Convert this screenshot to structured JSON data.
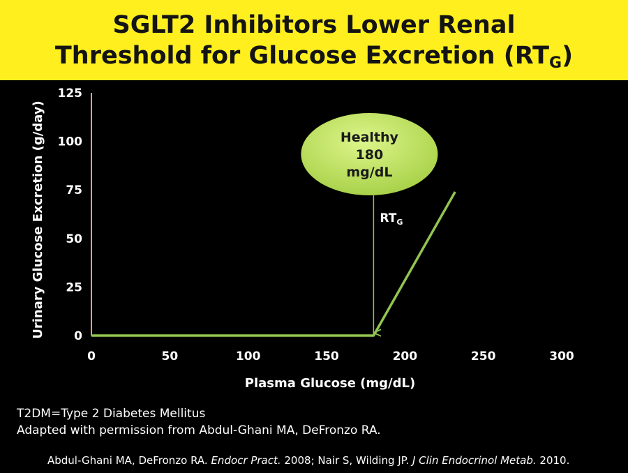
{
  "title": {
    "line1": "SGLT2 Inhibitors Lower Renal",
    "line2": "Threshold for Glucose Excretion (RT",
    "line2_sub": "G",
    "line2_end": ")"
  },
  "chart_data": {
    "type": "line",
    "xlabel": "Plasma Glucose (mg/dL)",
    "ylabel": "Urinary Glucose Excretion (g/day)",
    "xlim": [
      0,
      300
    ],
    "ylim": [
      0,
      125
    ],
    "x_ticks": [
      0,
      50,
      100,
      150,
      200,
      250,
      300
    ],
    "y_ticks": [
      0,
      25,
      50,
      75,
      100,
      125
    ],
    "series": [
      {
        "x": [
          0,
          180,
          232
        ],
        "y": [
          0,
          0,
          74
        ]
      }
    ],
    "threshold_marker": {
      "x": 180,
      "label": "RT",
      "label_sub": "G",
      "callout_lines": [
        "Healthy",
        "180",
        "mg/dL"
      ]
    },
    "colors": {
      "series": "#92C552",
      "y_axis": "#F0A070",
      "callout_fill": "#C4E86A",
      "callout_text": "#1A1A1A"
    }
  },
  "notes": {
    "line1": "T2DM=Type 2 Diabetes Mellitus",
    "line2": "Adapted with permission from Abdul-Ghani MA, DeFronzo RA."
  },
  "citation": {
    "part1": "Abdul-Ghani MA, DeFronzo RA. ",
    "journal1": "Endocr Pract.",
    "part2": " 2008; Nair S, Wilding JP. ",
    "journal2": "J Clin Endocrinol Metab.",
    "part3": " 2010."
  }
}
